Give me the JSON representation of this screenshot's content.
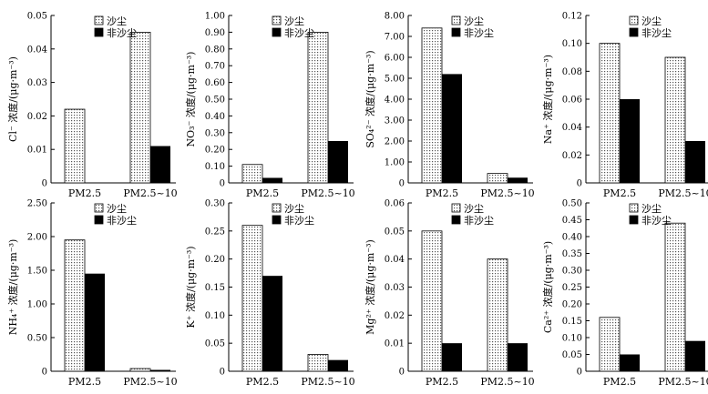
{
  "legend_labels": [
    "沙尘",
    "非沙尘"
  ],
  "colors": {
    "dust_fill": "#dcdcdc",
    "nondust_fill": "#000000",
    "axis": "#000000"
  },
  "chart_data": [
    {
      "type": "bar",
      "ylabel": "Cl⁻ 浓度/(μg·m⁻³)",
      "categories": [
        "PM2.5",
        "PM2.5~10"
      ],
      "ylim": [
        0,
        0.05
      ],
      "yticks": [
        "0",
        "0.01",
        "0.02",
        "0.03",
        "0.04",
        "0.05"
      ],
      "series": [
        {
          "name": "沙尘",
          "values": [
            0.022,
            0.045
          ]
        },
        {
          "name": "非沙尘",
          "values": [
            0,
            0.011
          ]
        }
      ]
    },
    {
      "type": "bar",
      "ylabel": "NO₃⁻ 浓度/(μg·m⁻³)",
      "categories": [
        "PM2.5",
        "PM2.5~10"
      ],
      "ylim": [
        0,
        1.0
      ],
      "yticks": [
        "0",
        "0.10",
        "0.20",
        "0.30",
        "0.40",
        "0.50",
        "0.60",
        "0.70",
        "0.80",
        "0.90",
        "1.00"
      ],
      "series": [
        {
          "name": "沙尘",
          "values": [
            0.11,
            0.9
          ]
        },
        {
          "name": "非沙尘",
          "values": [
            0.03,
            0.25
          ]
        }
      ]
    },
    {
      "type": "bar",
      "ylabel": "SO₄²⁻ 浓度/(μg·m⁻³)",
      "categories": [
        "PM2.5",
        "PM2.5~10"
      ],
      "ylim": [
        0,
        8.0
      ],
      "yticks": [
        "0",
        "1.00",
        "2.00",
        "3.00",
        "4.00",
        "5.00",
        "6.00",
        "7.00",
        "8.00"
      ],
      "series": [
        {
          "name": "沙尘",
          "values": [
            7.4,
            0.45
          ]
        },
        {
          "name": "非沙尘",
          "values": [
            5.2,
            0.25
          ]
        }
      ]
    },
    {
      "type": "bar",
      "ylabel": "Na⁺ 浓度/(μg·m⁻³)",
      "categories": [
        "PM2.5",
        "PM2.5~10"
      ],
      "ylim": [
        0,
        0.12
      ],
      "yticks": [
        "0",
        "0.02",
        "0.04",
        "0.06",
        "0.08",
        "0.10",
        "0.12"
      ],
      "series": [
        {
          "name": "沙尘",
          "values": [
            0.1,
            0.09
          ]
        },
        {
          "name": "非沙尘",
          "values": [
            0.06,
            0.03
          ]
        }
      ]
    },
    {
      "type": "bar",
      "ylabel": "NH₄⁺ 浓度/(μg·m⁻³)",
      "categories": [
        "PM2.5",
        "PM2.5~10"
      ],
      "ylim": [
        0,
        2.5
      ],
      "yticks": [
        "0",
        "0.50",
        "1.00",
        "1.50",
        "2.00",
        "2.50"
      ],
      "series": [
        {
          "name": "沙尘",
          "values": [
            1.95,
            0.04
          ]
        },
        {
          "name": "非沙尘",
          "values": [
            1.45,
            0.02
          ]
        }
      ]
    },
    {
      "type": "bar",
      "ylabel": "K⁺ 浓度/(μg·m⁻³)",
      "categories": [
        "PM2.5",
        "PM2.5~10"
      ],
      "ylim": [
        0,
        0.3
      ],
      "yticks": [
        "0",
        "0.05",
        "0.10",
        "0.15",
        "0.20",
        "0.25",
        "0.30"
      ],
      "series": [
        {
          "name": "沙尘",
          "values": [
            0.26,
            0.03
          ]
        },
        {
          "name": "非沙尘",
          "values": [
            0.17,
            0.02
          ]
        }
      ]
    },
    {
      "type": "bar",
      "ylabel": "Mg²⁺ 浓度/(μg·m⁻³)",
      "categories": [
        "PM2.5",
        "PM2.5~10"
      ],
      "ylim": [
        0,
        0.06
      ],
      "yticks": [
        "0",
        "0.01",
        "0.02",
        "0.03",
        "0.04",
        "0.05",
        "0.06"
      ],
      "series": [
        {
          "name": "沙尘",
          "values": [
            0.05,
            0.04
          ]
        },
        {
          "name": "非沙尘",
          "values": [
            0.01,
            0.01
          ]
        }
      ]
    },
    {
      "type": "bar",
      "ylabel": "Ca²⁺ 浓度/(μg·m⁻³)",
      "categories": [
        "PM2.5",
        "PM2.5~10"
      ],
      "ylim": [
        0,
        0.5
      ],
      "yticks": [
        "0",
        "0.05",
        "0.10",
        "0.15",
        "0.20",
        "0.25",
        "0.30",
        "0.35",
        "0.40",
        "0.45",
        "0.50"
      ],
      "series": [
        {
          "name": "沙尘",
          "values": [
            0.16,
            0.44
          ]
        },
        {
          "name": "非沙尘",
          "values": [
            0.05,
            0.09
          ]
        }
      ]
    }
  ]
}
